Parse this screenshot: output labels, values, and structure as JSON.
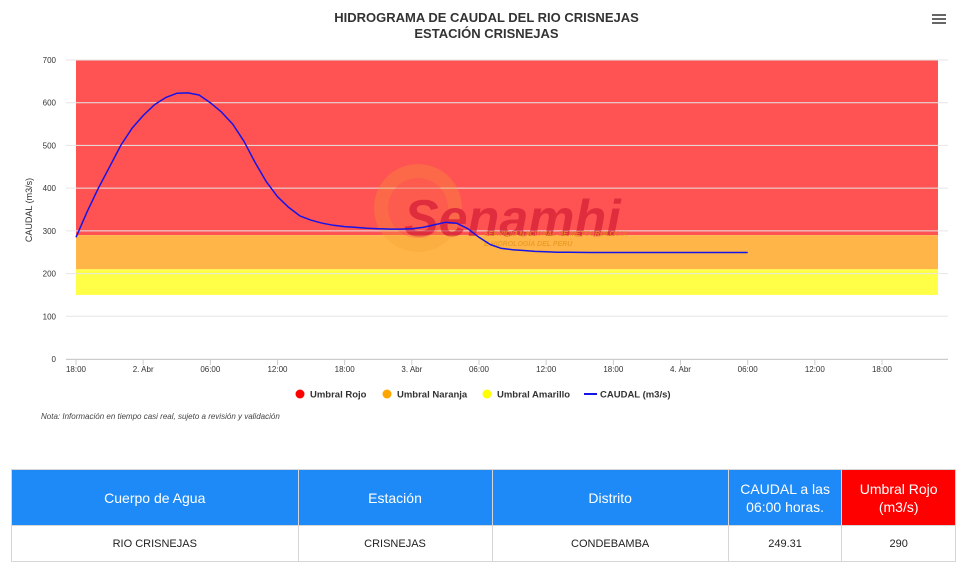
{
  "page": {
    "title_line1": "HIDROGRAMA DE CAUDAL DEL RIO CRISNEJAS",
    "title_line2": "ESTACIÓN CRISNEJAS",
    "note": "Nota: Información en tiempo casi real, sujeto a revisión y validación",
    "watermark": {
      "brand": "Senamhi",
      "subtitle_line1": "SERVICIO NACIONAL DE METEOROLOGÍA",
      "subtitle_line2": "E HIDROLOGÍA DEL PERÚ"
    }
  },
  "chart_data": {
    "type": "line",
    "title": "HIDROGRAMA DE CAUDAL DEL RIO CRISNEJAS",
    "subtitle": "ESTACIÓN CRISNEJAS",
    "ylabel": "CAUDAL (m3/s)",
    "xlabel": "",
    "ylim": [
      0,
      700
    ],
    "yticks": [
      0,
      100,
      200,
      300,
      400,
      500,
      600,
      700
    ],
    "xlim": [
      0,
      72
    ],
    "xticks": [
      {
        "x": 0,
        "label": "18:00"
      },
      {
        "x": 6,
        "label": "2. Abr"
      },
      {
        "x": 12,
        "label": "06:00"
      },
      {
        "x": 18,
        "label": "12:00"
      },
      {
        "x": 24,
        "label": "18:00"
      },
      {
        "x": 30,
        "label": "3. Abr"
      },
      {
        "x": 36,
        "label": "06:00"
      },
      {
        "x": 42,
        "label": "12:00"
      },
      {
        "x": 48,
        "label": "18:00"
      },
      {
        "x": 54,
        "label": "4. Abr"
      },
      {
        "x": 60,
        "label": "06:00"
      },
      {
        "x": 66,
        "label": "12:00"
      },
      {
        "x": 72,
        "label": "18:00"
      }
    ],
    "bands": [
      {
        "name": "Umbral Rojo",
        "from": 290,
        "to": 700,
        "color": "#ff5252"
      },
      {
        "name": "Umbral Naranja",
        "from": 210,
        "to": 290,
        "color": "#ffb548"
      },
      {
        "name": "Umbral Amarillo",
        "from": 150,
        "to": 210,
        "color": "#ffff48"
      }
    ],
    "series": [
      {
        "name": "CAUDAL (m3/s)",
        "color": "#1515e8",
        "x": [
          0,
          1,
          2,
          3,
          4,
          5,
          6,
          7,
          8,
          9,
          10,
          11,
          12,
          13,
          14,
          15,
          16,
          17,
          18,
          19,
          20,
          21,
          22,
          23,
          24,
          25,
          26,
          27,
          28,
          29,
          30,
          31,
          32,
          33,
          34,
          35,
          36,
          37,
          38,
          39,
          40,
          41,
          42,
          43,
          44,
          45,
          46,
          47,
          48,
          49,
          50,
          51,
          52,
          53,
          54,
          55,
          56,
          57,
          58,
          59,
          60
        ],
        "values": [
          285,
          345,
          400,
          450,
          500,
          540,
          570,
          595,
          612,
          622,
          623,
          618,
          600,
          578,
          550,
          510,
          460,
          415,
          380,
          355,
          335,
          325,
          318,
          313,
          310,
          308,
          306,
          305,
          304,
          304,
          305,
          308,
          314,
          320,
          318,
          305,
          285,
          268,
          259,
          256,
          254,
          252,
          251,
          250,
          250,
          249.5,
          249.4,
          249.3,
          249.31,
          249.31,
          249.31,
          249.31,
          249.31,
          249.31,
          249.31,
          249.31,
          249.31,
          249.31,
          249.31,
          249.31,
          249.31
        ]
      }
    ],
    "legend": {
      "placement": "bottom",
      "items": [
        {
          "label": "Umbral Rojo",
          "color": "#ff0000",
          "kind": "dot"
        },
        {
          "label": "Umbral Naranja",
          "color": "#ffa500",
          "kind": "dot"
        },
        {
          "label": "Umbral Amarillo",
          "color": "#ffff00",
          "kind": "dot"
        },
        {
          "label": "CAUDAL (m3/s)",
          "color": "#1515e8",
          "kind": "line"
        }
      ]
    },
    "grid": "horizontal"
  },
  "table": {
    "headers": {
      "cuerpo": "Cuerpo de Agua",
      "estacion": "Estación",
      "distrito": "Distrito",
      "caudal": "CAUDAL a las 06:00 horas.",
      "umbral": "Umbral Rojo (m3/s)"
    },
    "row": {
      "cuerpo": "RIO CRISNEJAS",
      "estacion": "CRISNEJAS",
      "distrito": "CONDEBAMBA",
      "caudal": "249.31",
      "umbral": "290"
    }
  }
}
